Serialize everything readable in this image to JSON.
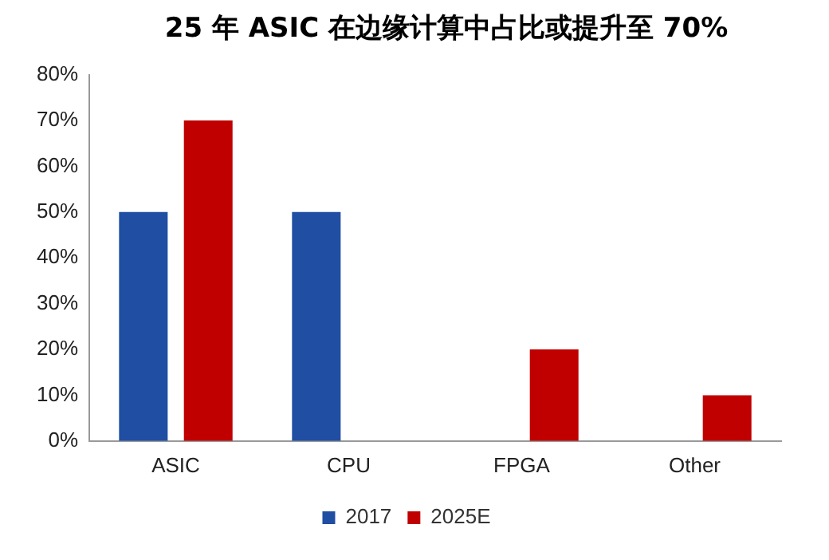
{
  "chart_data": {
    "type": "bar",
    "title": "25 年 ASIC 在边缘计算中占比或提升至 70%",
    "categories": [
      "ASIC",
      "CPU",
      "FPGA",
      "Other"
    ],
    "series": [
      {
        "name": "2017",
        "color": "#1f4ea3",
        "values": [
          50,
          50,
          0,
          0
        ]
      },
      {
        "name": "2025E",
        "color": "#c00000",
        "values": [
          70,
          0,
          20,
          10
        ]
      }
    ],
    "ylim": [
      0,
      80
    ],
    "yticks": [
      {
        "value": 0,
        "label": "0%"
      },
      {
        "value": 10,
        "label": "10%"
      },
      {
        "value": 20,
        "label": "20%"
      },
      {
        "value": 30,
        "label": "30%"
      },
      {
        "value": 40,
        "label": "40%"
      },
      {
        "value": 50,
        "label": "50%"
      },
      {
        "value": 60,
        "label": "60%"
      },
      {
        "value": 70,
        "label": "70%"
      },
      {
        "value": 80,
        "label": "80%"
      }
    ],
    "grid": false,
    "legend": "bottom"
  }
}
